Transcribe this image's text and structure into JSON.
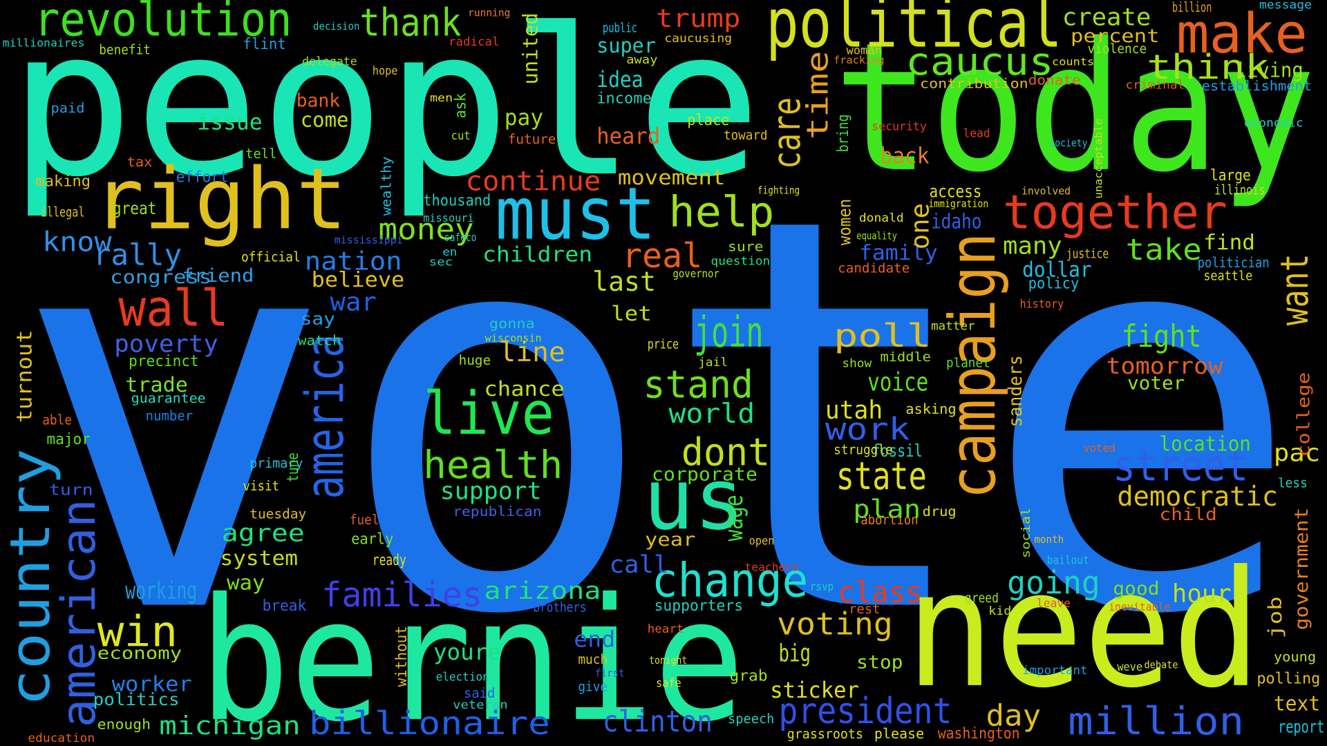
{
  "words": [
    "vote",
    "people",
    "today",
    "bernie",
    "need",
    "political",
    "campaign",
    "america",
    "country",
    "american",
    "right",
    "must",
    "us",
    "revolution",
    "thank",
    "make",
    "caucus",
    "think",
    "together",
    "wall",
    "live",
    "health",
    "change",
    "join",
    "stand",
    "dont",
    "help",
    "care",
    "time",
    "money",
    "rally",
    "know",
    "nation",
    "congress",
    "friend",
    "real",
    "children",
    "last",
    "believe",
    "war",
    "poverty",
    "precinct",
    "trade",
    "guarantee",
    "turnout",
    "win",
    "economy",
    "worker",
    "politics",
    "enough",
    "michigan",
    "billionaire",
    "families",
    "working",
    "agree",
    "system",
    "way",
    "break",
    "youre",
    "arizona",
    "line",
    "chance",
    "support",
    "republican",
    "world",
    "corporate",
    "wage",
    "poll",
    "voice",
    "utah",
    "work",
    "state",
    "plan",
    "class",
    "voting",
    "big",
    "sticker",
    "president",
    "clinton",
    "day",
    "million",
    "going",
    "street",
    "democratic",
    "fight",
    "tomorrow",
    "voter",
    "location",
    "hour",
    "good",
    "take",
    "want",
    "many",
    "dollar",
    "find",
    "living",
    "establishment",
    "create",
    "percent",
    "trump",
    "super",
    "idea",
    "issue",
    "come",
    "bank",
    "continue",
    "movement",
    "heard",
    "income",
    "pay",
    "great",
    "thousand",
    "idaho",
    "back",
    "access",
    "family",
    "one",
    "call",
    "let",
    "year",
    "end",
    "heart",
    "grab",
    "speech",
    "stop",
    "text",
    "report",
    "polling",
    "young",
    "pac",
    "government",
    "job",
    "college",
    "washington",
    "grassroots",
    "please",
    "sanders",
    "fossil",
    "struggle",
    "visit",
    "tuesday",
    "primary",
    "tune",
    "number",
    "turn",
    "major",
    "able",
    "education",
    "effort",
    "tell",
    "tax",
    "making",
    "illegal",
    "paid",
    "benefit",
    "flint",
    "delegate",
    "decision",
    "millionaires",
    "official",
    "watch",
    "say",
    "ready",
    "early",
    "fuel",
    "without",
    "election",
    "said",
    "veteran",
    "much",
    "give",
    "first",
    "safe",
    "tonight",
    "supporters",
    "brothers",
    "future",
    "united",
    "ask",
    "cut",
    "men",
    "hope",
    "radical",
    "running",
    "wealthy",
    "missouri",
    "safeco",
    "sec",
    "en",
    "mississippi",
    "gonna",
    "wisconsin",
    "huge",
    "place",
    "toward",
    "caucusing",
    "public",
    "away",
    "sure",
    "question",
    "governor",
    "price",
    "jail",
    "open",
    "teachers",
    "women",
    "bring",
    "donald",
    "equality",
    "candidate",
    "policy",
    "justice",
    "politician",
    "seattle",
    "history",
    "matter",
    "planet",
    "middle",
    "show",
    "asking",
    "immigration",
    "lead",
    "security",
    "contribution",
    "donate",
    "violence",
    "counts",
    "woman",
    "fracking",
    "criminal",
    "economic",
    "large",
    "illinois",
    "society",
    "unacceptable",
    "involved",
    "billion",
    "message",
    "fighting",
    "abortion",
    "drug",
    "child",
    "leave",
    "greed",
    "kid",
    "rsvp",
    "rest",
    "important",
    "voted",
    "social",
    "bailout",
    "month",
    "inevitable",
    "debate",
    "weve",
    "less"
  ]
}
